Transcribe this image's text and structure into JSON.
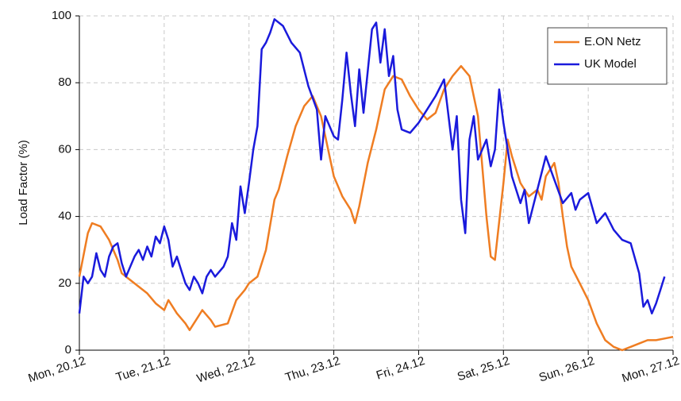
{
  "chart_data": {
    "type": "line",
    "ylabel": "Load Factor (%)",
    "xlim": [
      0,
      7
    ],
    "ylim": [
      0,
      100
    ],
    "yticks": [
      0,
      20,
      40,
      60,
      80,
      100
    ],
    "xticks": [
      {
        "value": 0,
        "label": "Mon, 20.12"
      },
      {
        "value": 1,
        "label": "Tue, 21.12"
      },
      {
        "value": 2,
        "label": "Wed, 22.12"
      },
      {
        "value": 3,
        "label": "Thu, 23.12"
      },
      {
        "value": 4,
        "label": "Fri, 24.12"
      },
      {
        "value": 5,
        "label": "Sat, 25.12"
      },
      {
        "value": 6,
        "label": "Sun, 26.12"
      },
      {
        "value": 7,
        "label": "Mon, 27.12"
      }
    ],
    "grid": true,
    "legend": "upper right",
    "series": [
      {
        "name": "E.ON Netz",
        "color": "#ef7d22",
        "x": [
          0,
          0.1,
          0.15,
          0.25,
          0.35,
          0.45,
          0.5,
          0.6,
          0.7,
          0.8,
          0.9,
          1.0,
          1.05,
          1.15,
          1.25,
          1.3,
          1.4,
          1.45,
          1.55,
          1.6,
          1.75,
          1.85,
          1.95,
          2.0,
          2.1,
          2.2,
          2.3,
          2.35,
          2.45,
          2.55,
          2.65,
          2.75,
          2.85,
          2.95,
          3.0,
          3.1,
          3.2,
          3.25,
          3.3,
          3.4,
          3.5,
          3.6,
          3.7,
          3.8,
          3.9,
          4.0,
          4.1,
          4.2,
          4.3,
          4.4,
          4.5,
          4.6,
          4.7,
          4.75,
          4.8,
          4.85,
          4.9,
          5.0,
          5.05,
          5.1,
          5.2,
          5.3,
          5.4,
          5.45,
          5.5,
          5.6,
          5.65,
          5.7,
          5.75,
          5.8,
          5.9,
          6.0,
          6.1,
          6.2,
          6.3,
          6.4,
          6.5,
          6.6,
          6.7,
          6.8,
          6.9,
          7.0
        ],
        "values": [
          22,
          35,
          38,
          37,
          33,
          27,
          23,
          21,
          19,
          17,
          14,
          12,
          15,
          11,
          8,
          6,
          10,
          12,
          9,
          7,
          8,
          15,
          18,
          20,
          22,
          30,
          45,
          48,
          58,
          67,
          73,
          76,
          70,
          58,
          52,
          46,
          42,
          38,
          43,
          56,
          66,
          78,
          82,
          81,
          76,
          72,
          69,
          71,
          78,
          82,
          85,
          82,
          70,
          55,
          40,
          28,
          27,
          50,
          63,
          58,
          50,
          46,
          48,
          45,
          52,
          56,
          50,
          40,
          31,
          25,
          20,
          15,
          8,
          3,
          1,
          0,
          1,
          2,
          3,
          3,
          3.5,
          4
        ]
      },
      {
        "name": "UK Model",
        "color": "#1a1adc",
        "x": [
          0,
          0.05,
          0.1,
          0.15,
          0.2,
          0.25,
          0.3,
          0.35,
          0.4,
          0.45,
          0.5,
          0.55,
          0.6,
          0.65,
          0.7,
          0.75,
          0.8,
          0.85,
          0.9,
          0.95,
          1.0,
          1.05,
          1.1,
          1.15,
          1.2,
          1.25,
          1.3,
          1.35,
          1.4,
          1.45,
          1.5,
          1.55,
          1.6,
          1.7,
          1.75,
          1.8,
          1.85,
          1.9,
          1.95,
          2.0,
          2.05,
          2.1,
          2.15,
          2.2,
          2.25,
          2.3,
          2.4,
          2.5,
          2.6,
          2.7,
          2.8,
          2.85,
          2.9,
          3.0,
          3.05,
          3.1,
          3.15,
          3.2,
          3.25,
          3.3,
          3.35,
          3.45,
          3.5,
          3.55,
          3.6,
          3.65,
          3.7,
          3.75,
          3.8,
          3.9,
          4.0,
          4.1,
          4.2,
          4.3,
          4.4,
          4.45,
          4.5,
          4.55,
          4.6,
          4.65,
          4.7,
          4.8,
          4.85,
          4.9,
          4.95,
          5.0,
          5.1,
          5.2,
          5.25,
          5.3,
          5.4,
          5.5,
          5.6,
          5.7,
          5.8,
          5.85,
          5.9,
          6.0,
          6.1,
          6.2,
          6.3,
          6.4,
          6.5,
          6.6,
          6.65,
          6.7,
          6.75,
          6.8,
          6.85,
          6.9
        ],
        "values": [
          11,
          22,
          20,
          22,
          29,
          24,
          22,
          28,
          31,
          32,
          26,
          22,
          25,
          28,
          30,
          27,
          31,
          28,
          34,
          32,
          37,
          33,
          25,
          28,
          24,
          20,
          18,
          22,
          20,
          17,
          22,
          24,
          22,
          25,
          28,
          38,
          33,
          49,
          41,
          50,
          60,
          67,
          90,
          92,
          95,
          99,
          97,
          92,
          89,
          79,
          72,
          57,
          70,
          64,
          63,
          75,
          89,
          77,
          67,
          84,
          71,
          96,
          98,
          86,
          96,
          82,
          88,
          72,
          66,
          65,
          68,
          72,
          76,
          81,
          60,
          70,
          45,
          35,
          63,
          70,
          57,
          63,
          55,
          60,
          78,
          68,
          52,
          44,
          48,
          38,
          48,
          58,
          51,
          44,
          47,
          42,
          45,
          47,
          38,
          41,
          36,
          33,
          32,
          23,
          13,
          15,
          11,
          14,
          18,
          22
        ]
      }
    ]
  }
}
